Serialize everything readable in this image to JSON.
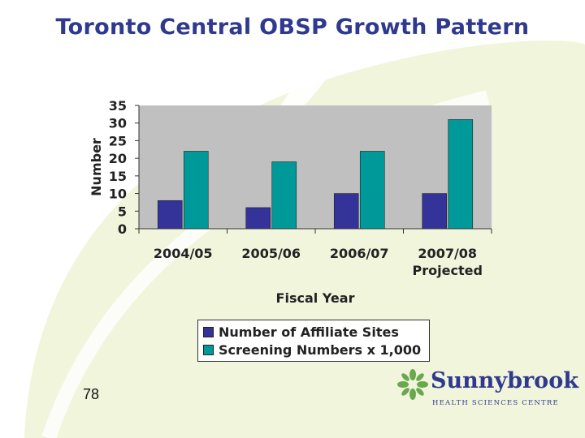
{
  "slide": {
    "title": "Toronto Central OBSP Growth Pattern",
    "number": "78"
  },
  "logo": {
    "name": "Sunnybrook",
    "subtitle": "HEALTH SCIENCES CENTRE",
    "icon": "leaf-cluster-icon"
  },
  "colors": {
    "title": "#2f3a8f",
    "series_affiliate": "#333399",
    "series_screening": "#009999",
    "plot_bg": "#c0c0c0",
    "leaf_bg": "#eef3d6"
  },
  "chart_data": {
    "type": "bar",
    "categories": [
      "2004/05",
      "2005/06",
      "2006/07",
      "2007/08 Projected"
    ],
    "category_lines": [
      [
        "2004/05"
      ],
      [
        "2005/06"
      ],
      [
        "2006/07"
      ],
      [
        "2007/08",
        "Projected"
      ]
    ],
    "series": [
      {
        "name": "Number of Affiliate Sites",
        "values": [
          8,
          6,
          10,
          10
        ],
        "color": "#333399"
      },
      {
        "name": "Screening Numbers x 1,000",
        "values": [
          22,
          19,
          22,
          31
        ],
        "color": "#009999"
      }
    ],
    "xlabel": "Fiscal Year",
    "ylabel": "Number",
    "ylim": [
      0,
      35
    ],
    "yticks": [
      0,
      5,
      10,
      15,
      20,
      25,
      30,
      35
    ],
    "legend_position": "bottom",
    "grid": false
  }
}
